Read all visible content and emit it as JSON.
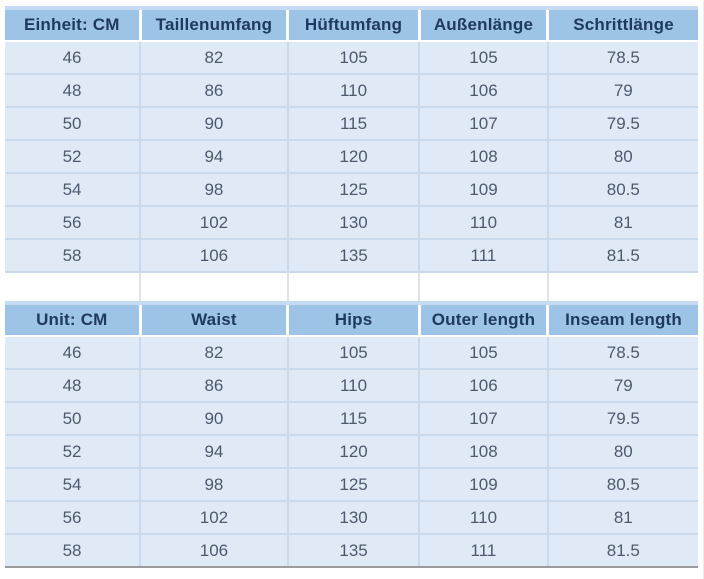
{
  "colors": {
    "header_bg": "#9dc3e6",
    "header_top_strip": "#c6dbf1",
    "header_separator": "#ffffff",
    "header_text": "#1f3a60",
    "cell_bg": "#dfeaf6",
    "grid_line": "#cbdaeb",
    "cell_text": "#4d5a6e",
    "spacer_bg": "#ffffff",
    "spacer_line": "#d6d6d6",
    "table_bottom_border": "#9a9a9a"
  },
  "tables": [
    {
      "id": "german",
      "headers": [
        "Einheit: CM",
        "Taillenumfang",
        "Hüftumfang",
        "Außenlänge",
        "Schrittlänge"
      ],
      "rows": [
        [
          "46",
          "82",
          "105",
          "105",
          "78.5"
        ],
        [
          "48",
          "86",
          "110",
          "106",
          "79"
        ],
        [
          "50",
          "90",
          "115",
          "107",
          "79.5"
        ],
        [
          "52",
          "94",
          "120",
          "108",
          "80"
        ],
        [
          "54",
          "98",
          "125",
          "109",
          "80.5"
        ],
        [
          "56",
          "102",
          "130",
          "110",
          "81"
        ],
        [
          "58",
          "106",
          "135",
          "111",
          "81.5"
        ]
      ]
    },
    {
      "id": "english",
      "headers": [
        "Unit: CM",
        "Waist",
        "Hips",
        "Outer length",
        "Inseam length"
      ],
      "rows": [
        [
          "46",
          "82",
          "105",
          "105",
          "78.5"
        ],
        [
          "48",
          "86",
          "110",
          "106",
          "79"
        ],
        [
          "50",
          "90",
          "115",
          "107",
          "79.5"
        ],
        [
          "52",
          "94",
          "120",
          "108",
          "80"
        ],
        [
          "54",
          "98",
          "125",
          "109",
          "80.5"
        ],
        [
          "56",
          "102",
          "130",
          "110",
          "81"
        ],
        [
          "58",
          "106",
          "135",
          "111",
          "81.5"
        ]
      ]
    }
  ]
}
